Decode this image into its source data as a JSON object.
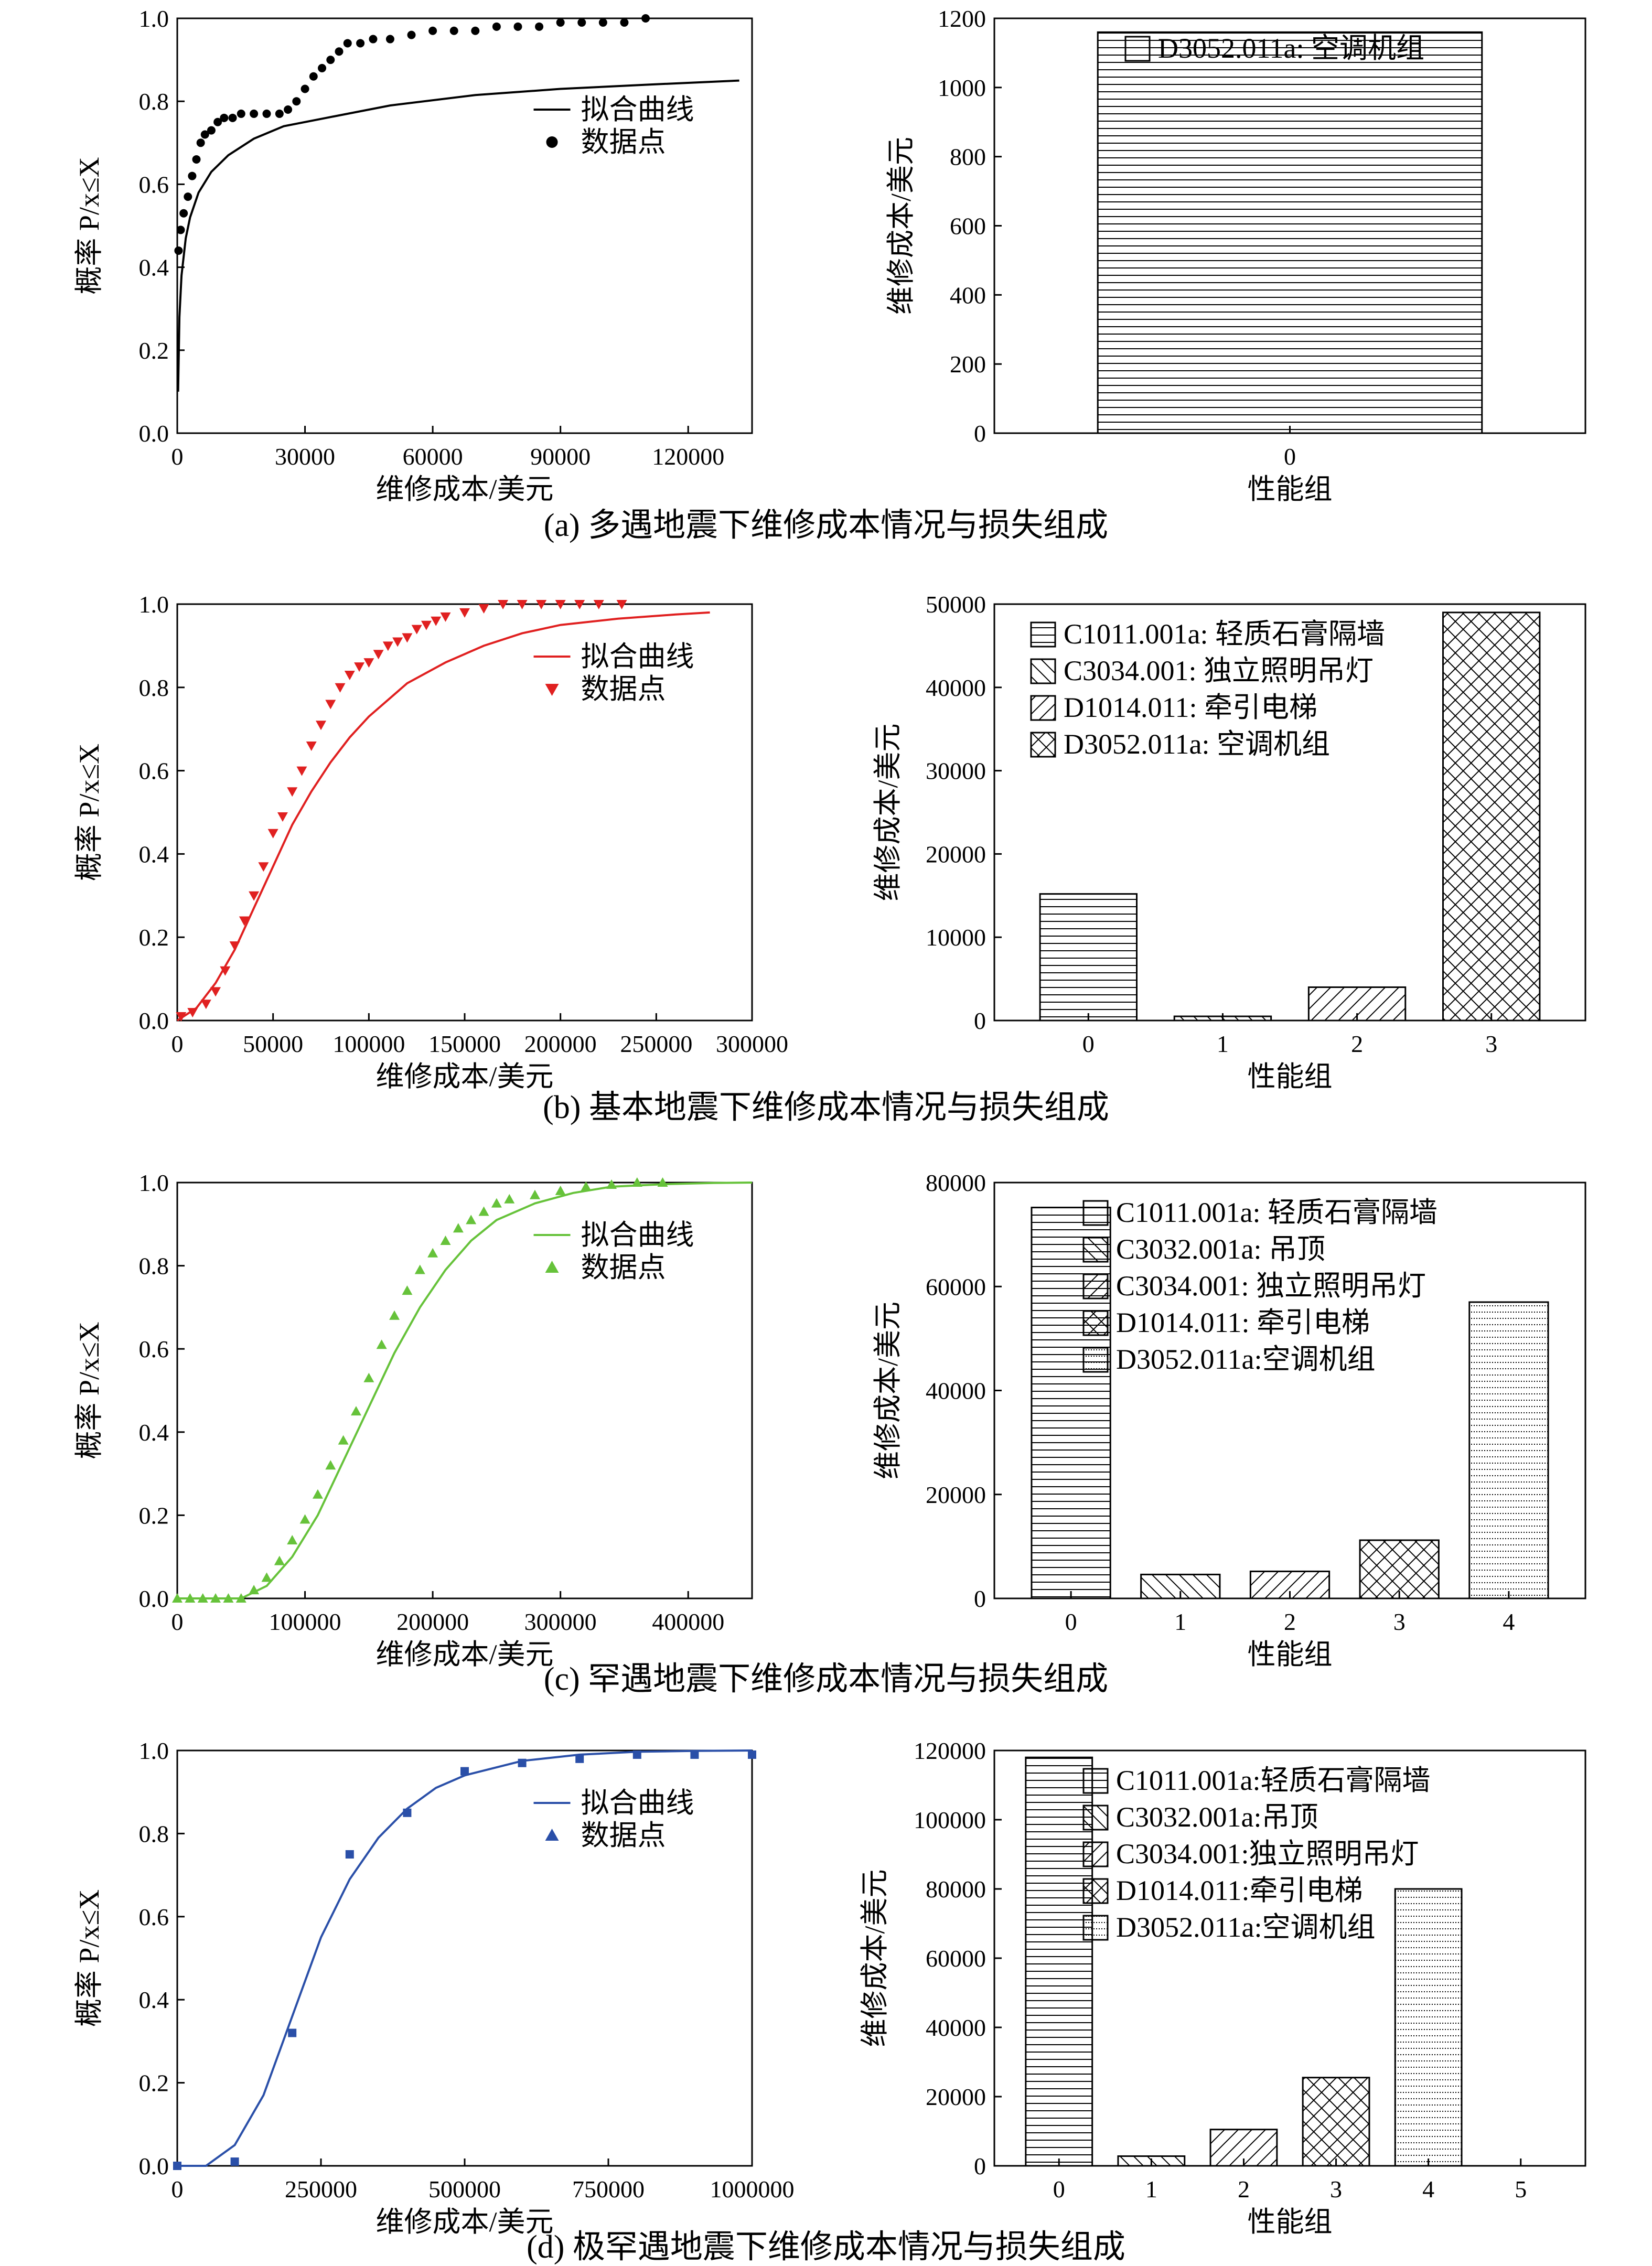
{
  "chart_data": [
    {
      "id": "a_cdf",
      "type": "line",
      "xlabel": "维修成本/美元",
      "ylabel": "概率 P/x≤X",
      "xlim": [
        0,
        135000
      ],
      "ylim": [
        0,
        1
      ],
      "xticks": [
        0,
        30000,
        60000,
        90000,
        120000
      ],
      "yticks": [
        0.0,
        0.2,
        0.4,
        0.6,
        0.8,
        1.0
      ],
      "legend": {
        "position": "right-middle",
        "entries": [
          "拟合曲线",
          "数据点"
        ]
      },
      "series": [
        {
          "name": "拟合曲线",
          "kind": "line",
          "color": "#000000",
          "x": [
            200,
            500,
            1000,
            2000,
            3000,
            5000,
            8000,
            12000,
            18000,
            25000,
            35000,
            50000,
            70000,
            90000,
            110000,
            132000
          ],
          "y": [
            0.1,
            0.28,
            0.38,
            0.47,
            0.52,
            0.58,
            0.63,
            0.67,
            0.71,
            0.74,
            0.76,
            0.79,
            0.815,
            0.83,
            0.84,
            0.85
          ]
        },
        {
          "name": "数据点",
          "kind": "scatter",
          "marker": "circle",
          "color": "#000000",
          "x": [
            300,
            800,
            1500,
            2500,
            3500,
            4500,
            5500,
            6500,
            8000,
            9500,
            11000,
            13000,
            15000,
            18000,
            21000,
            24000,
            26000,
            28000,
            30000,
            32000,
            34000,
            36000,
            38000,
            40000,
            43000,
            46000,
            50000,
            55000,
            60000,
            65000,
            70000,
            75000,
            80000,
            85000,
            90000,
            95000,
            100000,
            105000,
            110000
          ],
          "y": [
            0.44,
            0.49,
            0.53,
            0.57,
            0.62,
            0.66,
            0.7,
            0.72,
            0.73,
            0.75,
            0.76,
            0.76,
            0.77,
            0.77,
            0.77,
            0.77,
            0.78,
            0.8,
            0.83,
            0.86,
            0.88,
            0.9,
            0.92,
            0.94,
            0.94,
            0.95,
            0.95,
            0.96,
            0.97,
            0.97,
            0.97,
            0.98,
            0.98,
            0.98,
            0.99,
            0.99,
            0.99,
            0.99,
            1.0
          ]
        }
      ]
    },
    {
      "id": "a_bar",
      "type": "bar",
      "xlabel": "性能组",
      "ylabel": "维修成本/美元",
      "categories": [
        "0"
      ],
      "ylim": [
        0,
        1200
      ],
      "yticks": [
        0,
        200,
        400,
        600,
        800,
        1000,
        1200
      ],
      "legend": {
        "position": "top-center",
        "entries": [
          "D3052.011a: 空调机组"
        ]
      },
      "values": [
        1160
      ],
      "patterns": [
        "horiz"
      ]
    },
    {
      "id": "b_cdf",
      "type": "line",
      "xlabel": "维修成本/美元",
      "ylabel": "概率 P/x≤X",
      "xlim": [
        0,
        300000
      ],
      "ylim": [
        0,
        1
      ],
      "xticks": [
        0,
        50000,
        100000,
        150000,
        200000,
        250000,
        300000
      ],
      "yticks": [
        0.0,
        0.2,
        0.4,
        0.6,
        0.8,
        1.0
      ],
      "legend": {
        "position": "top-right",
        "entries": [
          "拟合曲线",
          "数据点"
        ]
      },
      "series": [
        {
          "name": "拟合曲线",
          "kind": "line",
          "color": "#e02020",
          "x": [
            0,
            10000,
            20000,
            30000,
            40000,
            50000,
            60000,
            70000,
            80000,
            90000,
            100000,
            120000,
            140000,
            160000,
            180000,
            200000,
            230000,
            260000,
            278000
          ],
          "y": [
            0.0,
            0.03,
            0.09,
            0.17,
            0.27,
            0.37,
            0.47,
            0.55,
            0.62,
            0.68,
            0.73,
            0.81,
            0.86,
            0.9,
            0.93,
            0.95,
            0.965,
            0.975,
            0.98
          ]
        },
        {
          "name": "数据点",
          "kind": "scatter",
          "marker": "triangle-down",
          "color": "#e02020",
          "x": [
            2000,
            8000,
            15000,
            20000,
            25000,
            30000,
            35000,
            40000,
            45000,
            50000,
            55000,
            60000,
            65000,
            70000,
            75000,
            80000,
            85000,
            90000,
            95000,
            100000,
            105000,
            110000,
            115000,
            120000,
            125000,
            130000,
            135000,
            140000,
            150000,
            160000,
            170000,
            180000,
            190000,
            200000,
            210000,
            220000,
            232000
          ],
          "y": [
            0.01,
            0.02,
            0.04,
            0.07,
            0.12,
            0.18,
            0.24,
            0.3,
            0.37,
            0.45,
            0.49,
            0.55,
            0.6,
            0.66,
            0.71,
            0.76,
            0.8,
            0.83,
            0.85,
            0.86,
            0.88,
            0.9,
            0.91,
            0.92,
            0.94,
            0.95,
            0.96,
            0.97,
            0.98,
            0.99,
            1.0,
            1.0,
            1.0,
            1.0,
            1.0,
            1.0,
            1.0
          ]
        }
      ]
    },
    {
      "id": "b_bar",
      "type": "bar",
      "xlabel": "性能组",
      "ylabel": "维修成本/美元",
      "categories": [
        "0",
        "1",
        "2",
        "3"
      ],
      "ylim": [
        0,
        50000
      ],
      "yticks": [
        0,
        10000,
        20000,
        30000,
        40000,
        50000
      ],
      "legend": {
        "position": "top-left",
        "entries": [
          "C1011.001a: 轻质石膏隔墙",
          "C3034.001: 独立照明吊灯",
          "D1014.011: 牵引电梯",
          "D3052.011a: 空调机组"
        ]
      },
      "values": [
        15200,
        500,
        4000,
        49000
      ],
      "patterns": [
        "horiz",
        "back",
        "fwd",
        "cross"
      ]
    },
    {
      "id": "c_cdf",
      "type": "line",
      "xlabel": "维修成本/美元",
      "ylabel": "概率 P/x≤X",
      "xlim": [
        0,
        450000
      ],
      "ylim": [
        0,
        1
      ],
      "xticks": [
        0,
        100000,
        200000,
        300000,
        400000
      ],
      "yticks": [
        0.0,
        0.2,
        0.4,
        0.6,
        0.8,
        1.0
      ],
      "legend": {
        "position": "top-right",
        "entries": [
          "拟合曲线",
          "数据点"
        ]
      },
      "series": [
        {
          "name": "拟合曲线",
          "kind": "line",
          "color": "#66c23a",
          "x": [
            0,
            50000,
            70000,
            90000,
            110000,
            130000,
            150000,
            170000,
            190000,
            210000,
            230000,
            250000,
            280000,
            310000,
            340000,
            380000,
            420000,
            450000
          ],
          "y": [
            0.0,
            0.0,
            0.03,
            0.1,
            0.2,
            0.33,
            0.46,
            0.59,
            0.7,
            0.79,
            0.86,
            0.91,
            0.95,
            0.975,
            0.99,
            0.996,
            0.999,
            1.0
          ]
        },
        {
          "name": "数据点",
          "kind": "scatter",
          "marker": "triangle-up",
          "color": "#66c23a",
          "x": [
            0,
            10000,
            20000,
            30000,
            40000,
            50000,
            60000,
            70000,
            80000,
            90000,
            100000,
            110000,
            120000,
            130000,
            140000,
            150000,
            160000,
            170000,
            180000,
            190000,
            200000,
            210000,
            220000,
            230000,
            240000,
            250000,
            260000,
            280000,
            300000,
            320000,
            340000,
            360000,
            380000
          ],
          "y": [
            0.0,
            0.0,
            0.0,
            0.0,
            0.0,
            0.0,
            0.02,
            0.05,
            0.09,
            0.14,
            0.19,
            0.25,
            0.32,
            0.38,
            0.45,
            0.53,
            0.61,
            0.68,
            0.74,
            0.79,
            0.83,
            0.86,
            0.89,
            0.91,
            0.93,
            0.95,
            0.96,
            0.97,
            0.98,
            0.99,
            0.995,
            1.0,
            1.0
          ]
        }
      ]
    },
    {
      "id": "c_bar",
      "type": "bar",
      "xlabel": "性能组",
      "ylabel": "维修成本/美元",
      "categories": [
        "0",
        "1",
        "2",
        "3",
        "4"
      ],
      "ylim": [
        0,
        80000
      ],
      "yticks": [
        0,
        20000,
        40000,
        60000,
        80000
      ],
      "legend": {
        "position": "top-center",
        "entries": [
          "C1011.001a: 轻质石膏隔墙",
          "C3032.001a: 吊顶",
          "C3034.001: 独立照明吊灯",
          "D1014.011: 牵引电梯",
          "D3052.011a:空调机组"
        ]
      },
      "values": [
        75200,
        4600,
        5200,
        11200,
        57000
      ],
      "patterns": [
        "horiz",
        "back",
        "fwd",
        "cross",
        "dots"
      ]
    },
    {
      "id": "d_cdf",
      "type": "line",
      "xlabel": "维修成本/美元",
      "ylabel": "概率 P/x≤X",
      "xlim": [
        0,
        1000000
      ],
      "ylim": [
        0,
        1
      ],
      "xticks": [
        0,
        250000,
        500000,
        750000,
        1000000
      ],
      "yticks": [
        0.0,
        0.2,
        0.4,
        0.6,
        0.8,
        1.0
      ],
      "legend": {
        "position": "top-right",
        "entries": [
          "拟合曲线",
          "数据点"
        ]
      },
      "series": [
        {
          "name": "拟合曲线",
          "kind": "line",
          "color": "#2a4fa8",
          "x": [
            0,
            50000,
            100000,
            150000,
            200000,
            250000,
            300000,
            350000,
            400000,
            450000,
            500000,
            600000,
            700000,
            800000,
            900000,
            1000000
          ],
          "y": [
            0.0,
            0.0,
            0.05,
            0.17,
            0.36,
            0.55,
            0.69,
            0.79,
            0.86,
            0.91,
            0.94,
            0.975,
            0.99,
            0.997,
            0.999,
            1.0
          ]
        },
        {
          "name": "数据点",
          "kind": "scatter",
          "marker": "square",
          "color": "#2a4fa8",
          "x": [
            0,
            100000,
            200000,
            300000,
            400000,
            500000,
            600000,
            700000,
            800000,
            900000,
            1000000
          ],
          "y": [
            0.0,
            0.01,
            0.32,
            0.75,
            0.85,
            0.95,
            0.97,
            0.98,
            0.99,
            0.99,
            0.99
          ]
        }
      ]
    },
    {
      "id": "d_bar",
      "type": "bar",
      "xlabel": "性能组",
      "ylabel": "维修成本/美元",
      "categories": [
        "0",
        "1",
        "2",
        "3",
        "4",
        "5"
      ],
      "ylim": [
        0,
        120000
      ],
      "yticks": [
        0,
        20000,
        40000,
        60000,
        80000,
        100000,
        120000
      ],
      "legend": {
        "position": "top-center",
        "entries": [
          "C1011.001a:轻质石膏隔墙",
          "C3032.001a:吊顶",
          "C3034.001:独立照明吊灯",
          "D1014.011:牵引电梯",
          "D3052.011a:空调机组"
        ]
      },
      "values": [
        118000,
        2800,
        10500,
        25500,
        80000,
        null
      ],
      "patterns": [
        "horiz",
        "back",
        "fwd",
        "cross",
        "dots",
        "none"
      ]
    }
  ],
  "captions": {
    "a": "(a) 多遇地震下维修成本情况与损失组成",
    "b": "(b) 基本地震下维修成本情况与损失组成",
    "c": "(c) 罕遇地震下维修成本情况与损失组成",
    "d": "(d) 极罕遇地震下维修成本情况与损失组成"
  }
}
